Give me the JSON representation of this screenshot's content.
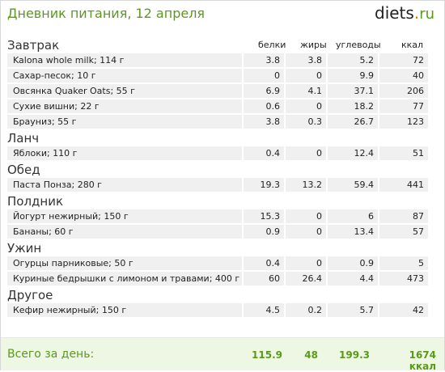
{
  "header": {
    "title": "Дневник питания, 12 апреля",
    "logo": {
      "main": "diets",
      "dot": ".",
      "tld": "ru"
    }
  },
  "columns": {
    "protein": "белки",
    "fat": "жиры",
    "carbs": "углеводы",
    "kcal": "ккал"
  },
  "meals": [
    {
      "name": "Завтрак",
      "items": [
        {
          "name": "Kalona whole milk; 114 г",
          "protein": "3.8",
          "fat": "3.8",
          "carbs": "5.2",
          "kcal": "72"
        },
        {
          "name": "Сахар-песок; 10 г",
          "protein": "0",
          "fat": "0",
          "carbs": "9.9",
          "kcal": "40"
        },
        {
          "name": "Овсянка Quaker Oats; 55 г",
          "protein": "6.9",
          "fat": "4.1",
          "carbs": "37.1",
          "kcal": "206"
        },
        {
          "name": "Сухие вишни; 22 г",
          "protein": "0.6",
          "fat": "0",
          "carbs": "18.2",
          "kcal": "77"
        },
        {
          "name": "Брауниз; 55 г",
          "protein": "3.8",
          "fat": "0.3",
          "carbs": "26.7",
          "kcal": "123"
        }
      ]
    },
    {
      "name": "Ланч",
      "items": [
        {
          "name": "Яблоки; 110 г",
          "protein": "0.4",
          "fat": "0",
          "carbs": "12.4",
          "kcal": "51"
        }
      ]
    },
    {
      "name": "Обед",
      "items": [
        {
          "name": "Паста Понза; 280 г",
          "protein": "19.3",
          "fat": "13.2",
          "carbs": "59.4",
          "kcal": "441"
        }
      ]
    },
    {
      "name": "Полдник",
      "items": [
        {
          "name": "Йогурт нежирный; 150 г",
          "protein": "15.3",
          "fat": "0",
          "carbs": "6",
          "kcal": "87"
        },
        {
          "name": "Бананы; 60 г",
          "protein": "0.9",
          "fat": "0",
          "carbs": "13.4",
          "kcal": "57"
        }
      ]
    },
    {
      "name": "Ужин",
      "items": [
        {
          "name": "Огурцы парниковые; 50 г",
          "protein": "0.4",
          "fat": "0",
          "carbs": "0.9",
          "kcal": "5"
        },
        {
          "name": "Куриные бедрышки с лимоном и травами; 400 г",
          "protein": "60",
          "fat": "26.4",
          "carbs": "4.4",
          "kcal": "473"
        }
      ]
    },
    {
      "name": "Другое",
      "items": [
        {
          "name": "Кефир нежирный; 150 г",
          "protein": "4.5",
          "fat": "0.2",
          "carbs": "5.7",
          "kcal": "42"
        }
      ]
    }
  ],
  "totals": {
    "label": "Всего за день:",
    "protein": "115.9",
    "fat": "48",
    "carbs": "199.3",
    "kcal": "1674 ккал"
  },
  "colors": {
    "accent": "#5a9a1a",
    "row_bg": "#f0f0f0",
    "footer_bg": "#eef7e3"
  }
}
